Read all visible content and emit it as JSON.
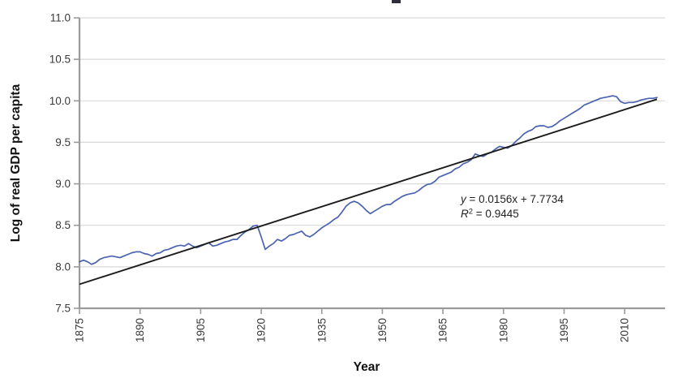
{
  "chart_data": {
    "type": "line",
    "xlabel": "Year",
    "ylabel": "Log of real GDP per capita",
    "ylim": [
      7.5,
      11.0
    ],
    "xlim": [
      1875,
      2020
    ],
    "yticks": [
      7.5,
      8.0,
      8.5,
      9.0,
      9.5,
      10.0,
      10.5,
      11.0
    ],
    "xticks": [
      1875,
      1890,
      1905,
      1920,
      1935,
      1950,
      1965,
      1980,
      1995,
      2010
    ],
    "grid": "horizontal-light",
    "legend": "none",
    "series": [
      {
        "name": "Log of real GDP per capita",
        "color": "#4a63b0",
        "x_start": 1875,
        "x_step": 1,
        "values": [
          8.06,
          8.08,
          8.06,
          8.03,
          8.05,
          8.09,
          8.11,
          8.12,
          8.13,
          8.12,
          8.11,
          8.13,
          8.15,
          8.17,
          8.18,
          8.18,
          8.16,
          8.15,
          8.13,
          8.16,
          8.17,
          8.2,
          8.21,
          8.23,
          8.25,
          8.26,
          8.25,
          8.28,
          8.25,
          8.23,
          8.25,
          8.27,
          8.29,
          8.25,
          8.26,
          8.28,
          8.3,
          8.31,
          8.33,
          8.33,
          8.38,
          8.42,
          8.45,
          8.49,
          8.5,
          8.36,
          8.21,
          8.25,
          8.28,
          8.33,
          8.31,
          8.34,
          8.38,
          8.39,
          8.41,
          8.43,
          8.38,
          8.36,
          8.39,
          8.43,
          8.47,
          8.5,
          8.53,
          8.57,
          8.6,
          8.66,
          8.73,
          8.77,
          8.79,
          8.77,
          8.73,
          8.68,
          8.64,
          8.67,
          8.7,
          8.73,
          8.75,
          8.75,
          8.79,
          8.82,
          8.85,
          8.87,
          8.88,
          8.89,
          8.92,
          8.96,
          8.99,
          9.0,
          9.03,
          9.08,
          9.1,
          9.12,
          9.14,
          9.18,
          9.2,
          9.24,
          9.26,
          9.29,
          9.36,
          9.34,
          9.33,
          9.36,
          9.38,
          9.42,
          9.45,
          9.44,
          9.43,
          9.46,
          9.51,
          9.55,
          9.6,
          9.63,
          9.65,
          9.69,
          9.7,
          9.7,
          9.68,
          9.69,
          9.72,
          9.76,
          9.79,
          9.82,
          9.85,
          9.88,
          9.91,
          9.95,
          9.97,
          9.99,
          10.01,
          10.03,
          10.04,
          10.05,
          10.06,
          10.05,
          9.99,
          9.97,
          9.98,
          9.98,
          9.99,
          10.01,
          10.02,
          10.03,
          10.03,
          10.04
        ]
      }
    ],
    "trendline": {
      "color": "#1c1c1c",
      "slope": 0.0156,
      "intercept": 7.7734,
      "x_origin_year": 1874,
      "draw_from_year": 1875,
      "draw_to_year": 2018,
      "equation": "y = 0.0156x + 7.7734",
      "r_squared_label": "R² = 0.9445",
      "eq1_italic": "y",
      "eq1_rest": " = 0.0156x + 7.7734",
      "eq2_italic": "R",
      "eq2_sup": "2",
      "eq2_rest": " = 0.9445"
    },
    "colors": {
      "series_line": "#4a63b0",
      "trend_line": "#1c1c1c",
      "gridline": "#d9d9d9",
      "axis_line": "#9a9a9a",
      "tick_text": "#3a3a3a",
      "title_text": "#111111"
    }
  }
}
